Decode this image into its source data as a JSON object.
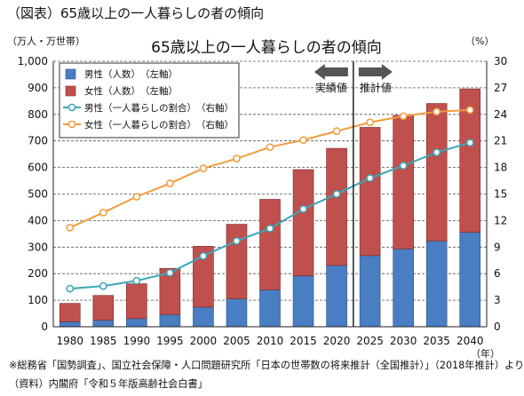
{
  "figure_caption": "（図表）65歳以上の一人暮らしの者の傾向",
  "notes": {
    "source1": "※総務省「国勢調査」、国立社会保障・人口問題研究所「日本の世帯数の将来推計（全国推計）」（2018年推計）より",
    "source2": "（資料）内閣府「令和５年版高齢社会白書」"
  },
  "colors": {
    "male_bar": "#4a7ec2",
    "female_bar": "#c0504d",
    "male_line": "#3aa6b9",
    "female_line": "#f29b3a"
  },
  "chart_data": {
    "type": "bar",
    "title": "65歳以上の一人暮らしの者の傾向",
    "left_unit": "（万人・万世帯）",
    "right_unit": "（%）",
    "x_unit": "（年）",
    "categories": [
      "1980",
      "1985",
      "1990",
      "1995",
      "2000",
      "2005",
      "2010",
      "2015",
      "2020",
      "2025",
      "2030",
      "2035",
      "2040"
    ],
    "left_axis": {
      "min": 0,
      "max": 1000,
      "step": 100,
      "tick_labels": [
        "0",
        "100",
        "200",
        "300",
        "400",
        "500",
        "600",
        "700",
        "800",
        "900",
        "1,000"
      ]
    },
    "right_axis": {
      "min": 0,
      "max": 30,
      "step": 3,
      "tick_labels": [
        "0",
        "3",
        "6",
        "9",
        "12",
        "15",
        "18",
        "21",
        "24",
        "27",
        "30"
      ]
    },
    "stacked": true,
    "series": [
      {
        "name": "男性（人数）　（左軸）",
        "kind": "bar",
        "axis": "left",
        "values": [
          19,
          25,
          31,
          46,
          74,
          105,
          139,
          192,
          231,
          268,
          293,
          323,
          356
        ]
      },
      {
        "name": "女性（人数）　（左軸）",
        "kind": "bar",
        "axis": "left",
        "values": [
          69,
          93,
          131,
          174,
          229,
          281,
          341,
          400,
          441,
          483,
          503,
          518,
          540
        ]
      },
      {
        "name": "男性（一人暮らしの割合）　（右軸）",
        "kind": "line",
        "axis": "right",
        "values": [
          4.3,
          4.6,
          5.2,
          6.1,
          8.0,
          9.7,
          11.1,
          13.3,
          15.0,
          16.8,
          18.2,
          19.7,
          20.8
        ]
      },
      {
        "name": "女性（一人暮らしの割合）　（右軸）",
        "kind": "line",
        "axis": "right",
        "values": [
          11.2,
          12.9,
          14.7,
          16.2,
          17.9,
          19.0,
          20.3,
          21.1,
          22.1,
          23.1,
          23.8,
          24.3,
          24.5
        ]
      }
    ],
    "annotations": {
      "actual": "実績値",
      "projected": "推計値"
    },
    "grid": true,
    "legend_position": "top-left"
  }
}
